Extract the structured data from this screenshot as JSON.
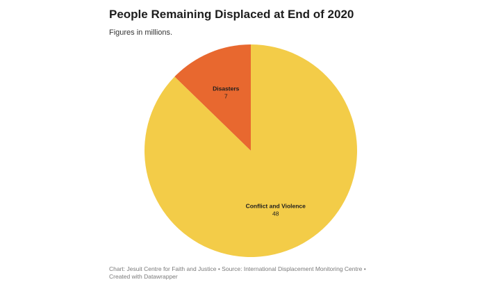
{
  "chart_data": {
    "type": "pie",
    "title": "People Remaining Displaced at End of 2020",
    "subtitle": "Figures in millions.",
    "slices": [
      {
        "label": "Disasters",
        "value": 7,
        "color": "#e8682f"
      },
      {
        "label": "Conflict and Violence",
        "value": 48,
        "color": "#f3cc48"
      }
    ],
    "footer": "Chart: Jesuit Centre for Faith and Justice • Source: International Displacement Monitoring Centre • Created with Datawrapper"
  }
}
